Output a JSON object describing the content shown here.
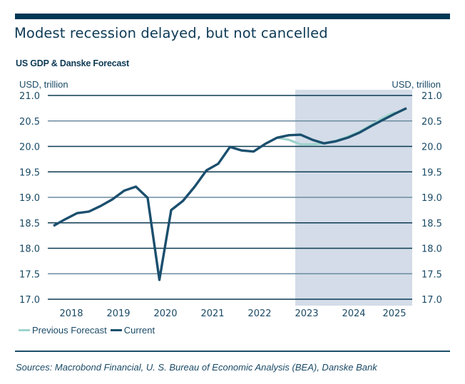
{
  "header": {
    "title": "Modest recession delayed, but not cancelled",
    "subtitle": "US GDP & Danske Forecast"
  },
  "footer": {
    "sources": "Sources: Macrobond Financial, U. S. Bureau of Economic Analysis (BEA), Danske Bank"
  },
  "colors": {
    "brand_dark": "#003755",
    "current_line": "#1b4f6e",
    "previous_forecast_line": "#9fd3cc",
    "forecast_shading": "#d3dce8",
    "grid_dark": "#0b3a52",
    "grid_light": "#6c8ba0"
  },
  "chart_data": {
    "type": "line",
    "title": "US GDP & Danske Forecast",
    "ylabel_left": "USD, trillion",
    "ylabel_right": "USD, trillion",
    "xlabel": "",
    "ylim": [
      17.0,
      21.0
    ],
    "yticks": [
      "21.0",
      "20.5",
      "20.0",
      "19.5",
      "19.0",
      "18.5",
      "18.0",
      "17.5",
      "17.0"
    ],
    "ytick_values": [
      21.0,
      20.5,
      20.0,
      19.5,
      19.0,
      18.5,
      18.0,
      17.5,
      17.0
    ],
    "xtick_labels": [
      "2018",
      "2019",
      "2020",
      "2021",
      "2022",
      "2023",
      "2024",
      "2025"
    ],
    "xtick_positions_year": [
      2018.0,
      2019.0,
      2020.0,
      2021.0,
      2022.0,
      2023.0,
      2024.0,
      2024.875
    ],
    "xlim": [
      2017.5,
      2025.5
    ],
    "grid": true,
    "legend_position": "bottom-left",
    "shaded_region": {
      "label": "forecast period",
      "x_start": 2022.875,
      "x_end": 2025.4
    },
    "x_quarters": [
      "2017Q4",
      "2018Q1",
      "2018Q2",
      "2018Q3",
      "2018Q4",
      "2019Q1",
      "2019Q2",
      "2019Q3",
      "2019Q4",
      "2020Q1",
      "2020Q2",
      "2020Q3",
      "2020Q4",
      "2021Q1",
      "2021Q2",
      "2021Q3",
      "2021Q4",
      "2022Q1",
      "2022Q2",
      "2022Q3",
      "2022Q4",
      "2023Q1",
      "2023Q2",
      "2023Q3",
      "2023Q4",
      "2024Q1",
      "2024Q2",
      "2024Q3",
      "2024Q4",
      "2025Q1",
      "2025Q2"
    ],
    "series": [
      {
        "name": "Previous Forecast",
        "start_index": 19,
        "values": [
          20.17,
          20.13,
          20.04,
          20.04,
          20.06,
          20.11,
          20.19,
          20.29,
          20.42,
          20.56,
          20.67
        ]
      },
      {
        "name": "Current",
        "start_index": 0,
        "values": [
          18.44,
          18.57,
          18.69,
          18.72,
          18.83,
          18.96,
          19.13,
          19.21,
          18.99,
          17.38,
          18.75,
          18.93,
          19.21,
          19.53,
          19.66,
          19.99,
          19.92,
          19.9,
          20.05,
          20.17,
          20.22,
          20.23,
          20.13,
          20.06,
          20.1,
          20.17,
          20.27,
          20.4,
          20.52,
          20.64,
          20.75
        ]
      }
    ]
  }
}
